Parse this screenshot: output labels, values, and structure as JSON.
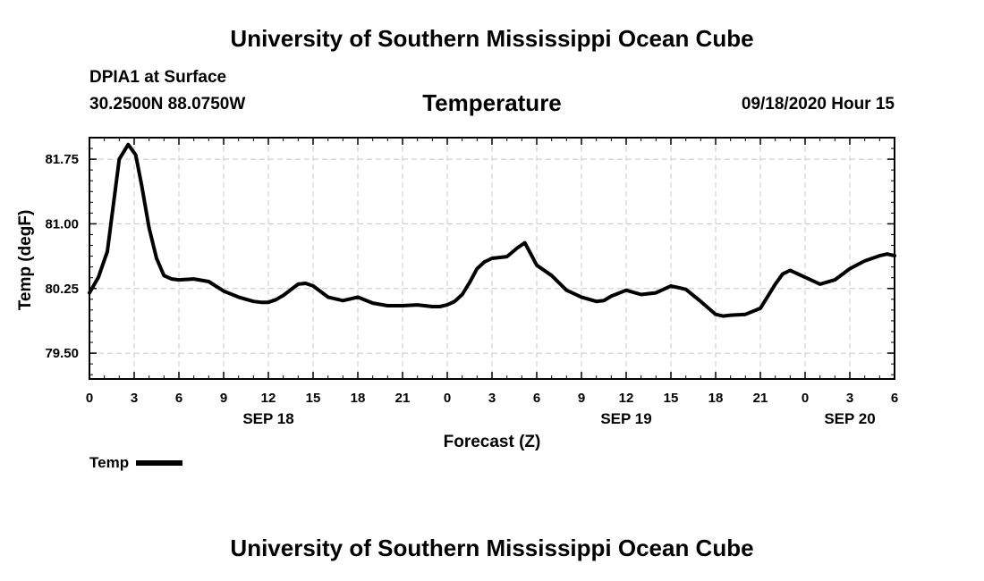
{
  "header": {
    "top_title": "University of Southern Mississippi Ocean Cube",
    "station": "DPIA1 at Surface",
    "coords": "30.2500N 88.0750W",
    "chart_title": "Temperature",
    "datetime": "09/18/2020 Hour 15"
  },
  "footer": {
    "bottom_title": "University of Southern Mississippi Ocean Cube"
  },
  "legend": {
    "label": "Temp"
  },
  "chart_data": {
    "type": "line",
    "title": "Temperature",
    "xlabel": "Forecast (Z)",
    "ylabel": "Temp (degF)",
    "x_unit": "forecast hour from SEP 18 00Z",
    "xlim": [
      0,
      54
    ],
    "ylim": [
      79.2,
      82.0
    ],
    "grid": true,
    "legend_position": "bottom-left",
    "y_ticks": [
      "79.50",
      "80.25",
      "81.00",
      "81.75"
    ],
    "y_tick_values": [
      79.5,
      80.25,
      81.0,
      81.75
    ],
    "x_ticks": [
      {
        "x": 0,
        "label": "0"
      },
      {
        "x": 3,
        "label": "3"
      },
      {
        "x": 6,
        "label": "6"
      },
      {
        "x": 9,
        "label": "9"
      },
      {
        "x": 12,
        "label": "12"
      },
      {
        "x": 15,
        "label": "15"
      },
      {
        "x": 18,
        "label": "18"
      },
      {
        "x": 21,
        "label": "21"
      },
      {
        "x": 24,
        "label": "0"
      },
      {
        "x": 27,
        "label": "3"
      },
      {
        "x": 30,
        "label": "6"
      },
      {
        "x": 33,
        "label": "9"
      },
      {
        "x": 36,
        "label": "12"
      },
      {
        "x": 39,
        "label": "15"
      },
      {
        "x": 42,
        "label": "18"
      },
      {
        "x": 45,
        "label": "21"
      },
      {
        "x": 48,
        "label": "0"
      },
      {
        "x": 51,
        "label": "3"
      },
      {
        "x": 54,
        "label": "6"
      }
    ],
    "date_labels": [
      {
        "x": 12,
        "label": "SEP 18"
      },
      {
        "x": 36,
        "label": "SEP 19"
      },
      {
        "x": 51,
        "label": "SEP 20"
      }
    ],
    "series": [
      {
        "name": "Temp",
        "x": [
          0,
          0.6,
          1.2,
          2,
          2.6,
          3.1,
          3.5,
          4,
          4.5,
          5,
          5.5,
          6,
          7,
          8,
          9,
          10,
          11,
          11.5,
          12,
          12.5,
          13,
          14,
          14.5,
          15,
          16,
          17,
          18,
          19,
          20,
          21,
          22,
          23,
          23.5,
          24,
          24.5,
          25,
          25.5,
          26,
          26.5,
          27,
          28,
          28.7,
          29.2,
          30,
          31,
          32,
          33,
          34,
          34.5,
          35,
          36,
          37,
          38,
          39,
          40,
          41,
          42,
          42.5,
          43,
          44,
          45,
          46,
          46.5,
          47,
          48,
          49,
          50,
          51,
          52,
          53,
          53.5,
          54
        ],
        "y": [
          80.2,
          80.38,
          80.68,
          81.75,
          81.92,
          81.8,
          81.45,
          80.95,
          80.6,
          80.4,
          80.36,
          80.35,
          80.36,
          80.33,
          80.22,
          80.15,
          80.1,
          80.09,
          80.09,
          80.12,
          80.17,
          80.3,
          80.31,
          80.28,
          80.15,
          80.11,
          80.15,
          80.08,
          80.05,
          80.05,
          80.06,
          80.04,
          80.04,
          80.06,
          80.1,
          80.18,
          80.32,
          80.48,
          80.56,
          80.6,
          80.62,
          80.72,
          80.78,
          80.52,
          80.4,
          80.23,
          80.15,
          80.1,
          80.11,
          80.16,
          80.23,
          80.18,
          80.2,
          80.28,
          80.24,
          80.1,
          79.95,
          79.93,
          79.94,
          79.95,
          80.02,
          80.3,
          80.42,
          80.46,
          80.38,
          80.3,
          80.35,
          80.48,
          80.57,
          80.63,
          80.65,
          80.63
        ]
      }
    ]
  }
}
